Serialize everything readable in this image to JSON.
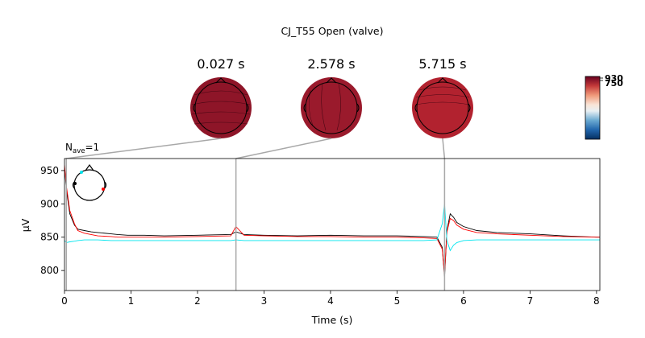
{
  "chart_data": {
    "type": "line",
    "title": "CJ_T55 Open (valve)",
    "nave_label": "N",
    "nave_sub": "ave",
    "nave_value": "=1",
    "xlabel": "Time (s)",
    "ylabel": "µV",
    "xlim": [
      0,
      8.05
    ],
    "ylim": [
      770,
      968
    ],
    "x_ticks": [
      0,
      1,
      2,
      3,
      4,
      5,
      6,
      7,
      8
    ],
    "y_ticks": [
      800,
      850,
      900,
      950
    ],
    "topomap_times": [
      0.027,
      2.578,
      5.715
    ],
    "topomap_labels": [
      "0.027 s",
      "2.578 s",
      "5.715 s"
    ],
    "colorbar_tick_labels": [
      "930",
      "750"
    ],
    "colors": {
      "series_black": "#000000",
      "series_red": "#ff0000",
      "series_cyan": "#00e5ee",
      "connector": "#a8a8a8",
      "topo_dark": "#6b0c1e",
      "topo_mid": "#8e1528",
      "topo_light": "#b2222f"
    },
    "series": [
      {
        "color": "#000000",
        "x": [
          0,
          0.03,
          0.08,
          0.15,
          0.2,
          0.3,
          0.4,
          0.5,
          0.7,
          0.8,
          0.95,
          1.2,
          1.5,
          2.0,
          2.5,
          2.578,
          2.7,
          3.0,
          3.5,
          4.0,
          4.5,
          5.0,
          5.4,
          5.6,
          5.68,
          5.715,
          5.75,
          5.8,
          5.85,
          5.9,
          6.0,
          6.2,
          6.5,
          7.0,
          7.5,
          8.0,
          8.05
        ],
        "y": [
          955,
          920,
          885,
          868,
          862,
          860,
          858,
          857,
          855,
          854,
          853,
          853,
          852,
          853,
          854,
          858,
          854,
          853,
          852,
          853,
          852,
          852,
          851,
          850,
          835,
          790,
          860,
          885,
          880,
          872,
          866,
          860,
          857,
          855,
          852,
          850,
          850
        ]
      },
      {
        "color": "#ff0000",
        "x": [
          0,
          0.03,
          0.08,
          0.15,
          0.2,
          0.3,
          0.4,
          0.5,
          0.7,
          0.8,
          0.95,
          1.2,
          1.5,
          2.0,
          2.5,
          2.578,
          2.7,
          3.0,
          3.5,
          4.0,
          4.5,
          5.0,
          5.4,
          5.6,
          5.68,
          5.715,
          5.75,
          5.8,
          5.85,
          5.9,
          6.0,
          6.2,
          6.5,
          7.0,
          7.5,
          8.0,
          8.05
        ],
        "y": [
          958,
          925,
          890,
          870,
          860,
          856,
          854,
          852,
          851,
          850,
          850,
          850,
          850,
          851,
          852,
          866,
          853,
          852,
          851,
          851,
          850,
          850,
          849,
          848,
          832,
          795,
          858,
          878,
          875,
          868,
          862,
          857,
          855,
          853,
          851,
          850,
          850
        ]
      },
      {
        "color": "#00e5ee",
        "x": [
          0,
          0.03,
          0.08,
          0.15,
          0.2,
          0.3,
          0.4,
          0.5,
          0.7,
          0.8,
          0.95,
          1.2,
          1.5,
          2.0,
          2.5,
          2.578,
          2.7,
          3.0,
          3.5,
          4.0,
          4.5,
          5.0,
          5.4,
          5.6,
          5.68,
          5.715,
          5.75,
          5.8,
          5.85,
          5.9,
          6.0,
          6.2,
          6.5,
          7.0,
          7.5,
          8.0,
          8.05
        ],
        "y": [
          845,
          842,
          843,
          844,
          845,
          846,
          846,
          846,
          845,
          845,
          845,
          845,
          845,
          845,
          845,
          846,
          845,
          845,
          845,
          845,
          845,
          845,
          845,
          846,
          870,
          900,
          845,
          830,
          838,
          842,
          845,
          846,
          846,
          846,
          846,
          846,
          846
        ]
      }
    ]
  }
}
